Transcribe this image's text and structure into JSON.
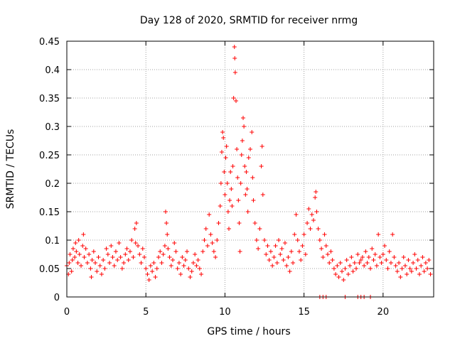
{
  "chart_data": {
    "type": "scatter",
    "title": "Day 128 of 2020, SRMTID for receiver nrmg",
    "xlabel": "GPS time / hours",
    "ylabel": "SRMTID / TECUs",
    "xlim": [
      0,
      23.2
    ],
    "ylim": [
      0,
      0.45
    ],
    "xticks": [
      0,
      5,
      10,
      15,
      20
    ],
    "xtick_labels": [
      "0",
      "5",
      "10",
      "15",
      "20"
    ],
    "yticks": [
      0,
      0.05,
      0.1,
      0.15,
      0.2,
      0.25,
      0.3,
      0.35,
      0.4,
      0.45
    ],
    "ytick_labels": [
      "0",
      "0.05",
      "0.1",
      "0.15",
      "0.2",
      "0.25",
      "0.3",
      "0.35",
      "0.4",
      "0.45"
    ],
    "grid": true,
    "marker": "plus",
    "marker_color": "#ff0000",
    "series": [
      {
        "name": "SRMTID",
        "points": [
          [
            0.0,
            0.055
          ],
          [
            0.1,
            0.04
          ],
          [
            0.15,
            0.06
          ],
          [
            0.2,
            0.075
          ],
          [
            0.3,
            0.045
          ],
          [
            0.35,
            0.065
          ],
          [
            0.4,
            0.085
          ],
          [
            0.5,
            0.07
          ],
          [
            0.55,
            0.095
          ],
          [
            0.6,
            0.08
          ],
          [
            0.7,
            0.06
          ],
          [
            0.75,
            0.1
          ],
          [
            0.8,
            0.075
          ],
          [
            0.9,
            0.055
          ],
          [
            1.0,
            0.09
          ],
          [
            1.05,
            0.11
          ],
          [
            1.1,
            0.07
          ],
          [
            1.2,
            0.085
          ],
          [
            1.3,
            0.06
          ],
          [
            1.4,
            0.075
          ],
          [
            1.5,
            0.05
          ],
          [
            1.55,
            0.035
          ],
          [
            1.6,
            0.065
          ],
          [
            1.7,
            0.08
          ],
          [
            1.8,
            0.06
          ],
          [
            1.9,
            0.045
          ],
          [
            2.0,
            0.07
          ],
          [
            2.1,
            0.055
          ],
          [
            2.2,
            0.04
          ],
          [
            2.3,
            0.065
          ],
          [
            2.4,
            0.05
          ],
          [
            2.5,
            0.085
          ],
          [
            2.6,
            0.075
          ],
          [
            2.7,
            0.06
          ],
          [
            2.8,
            0.09
          ],
          [
            2.9,
            0.07
          ],
          [
            3.0,
            0.055
          ],
          [
            3.1,
            0.08
          ],
          [
            3.2,
            0.065
          ],
          [
            3.3,
            0.095
          ],
          [
            3.4,
            0.07
          ],
          [
            3.5,
            0.05
          ],
          [
            3.6,
            0.06
          ],
          [
            3.7,
            0.075
          ],
          [
            3.8,
            0.085
          ],
          [
            3.9,
            0.065
          ],
          [
            4.0,
            0.08
          ],
          [
            4.1,
            0.1
          ],
          [
            4.2,
            0.07
          ],
          [
            4.3,
            0.12
          ],
          [
            4.35,
            0.095
          ],
          [
            4.4,
            0.13
          ],
          [
            4.5,
            0.09
          ],
          [
            4.6,
            0.075
          ],
          [
            4.7,
            0.06
          ],
          [
            4.8,
            0.085
          ],
          [
            4.9,
            0.07
          ],
          [
            5.0,
            0.05
          ],
          [
            5.1,
            0.04
          ],
          [
            5.2,
            0.03
          ],
          [
            5.3,
            0.055
          ],
          [
            5.4,
            0.045
          ],
          [
            5.5,
            0.06
          ],
          [
            5.6,
            0.035
          ],
          [
            5.7,
            0.05
          ],
          [
            5.8,
            0.07
          ],
          [
            5.9,
            0.08
          ],
          [
            6.0,
            0.06
          ],
          [
            6.1,
            0.075
          ],
          [
            6.2,
            0.09
          ],
          [
            6.25,
            0.15
          ],
          [
            6.3,
            0.13
          ],
          [
            6.35,
            0.11
          ],
          [
            6.4,
            0.085
          ],
          [
            6.5,
            0.07
          ],
          [
            6.6,
            0.055
          ],
          [
            6.7,
            0.065
          ],
          [
            6.8,
            0.095
          ],
          [
            6.9,
            0.08
          ],
          [
            7.0,
            0.05
          ],
          [
            7.1,
            0.06
          ],
          [
            7.2,
            0.04
          ],
          [
            7.3,
            0.07
          ],
          [
            7.4,
            0.055
          ],
          [
            7.5,
            0.065
          ],
          [
            7.6,
            0.08
          ],
          [
            7.7,
            0.05
          ],
          [
            7.8,
            0.035
          ],
          [
            7.9,
            0.045
          ],
          [
            8.0,
            0.06
          ],
          [
            8.1,
            0.075
          ],
          [
            8.2,
            0.055
          ],
          [
            8.3,
            0.065
          ],
          [
            8.4,
            0.05
          ],
          [
            8.5,
            0.04
          ],
          [
            8.6,
            0.08
          ],
          [
            8.7,
            0.1
          ],
          [
            8.8,
            0.12
          ],
          [
            8.9,
            0.09
          ],
          [
            9.0,
            0.145
          ],
          [
            9.1,
            0.11
          ],
          [
            9.2,
            0.095
          ],
          [
            9.3,
            0.08
          ],
          [
            9.4,
            0.07
          ],
          [
            9.5,
            0.1
          ],
          [
            9.6,
            0.13
          ],
          [
            9.7,
            0.16
          ],
          [
            9.75,
            0.2
          ],
          [
            9.8,
            0.255
          ],
          [
            9.85,
            0.29
          ],
          [
            9.9,
            0.28
          ],
          [
            9.95,
            0.22
          ],
          [
            10.0,
            0.18
          ],
          [
            10.05,
            0.245
          ],
          [
            10.1,
            0.265
          ],
          [
            10.15,
            0.2
          ],
          [
            10.2,
            0.15
          ],
          [
            10.25,
            0.12
          ],
          [
            10.3,
            0.17
          ],
          [
            10.35,
            0.22
          ],
          [
            10.4,
            0.19
          ],
          [
            10.45,
            0.16
          ],
          [
            10.5,
            0.23
          ],
          [
            10.55,
            0.35
          ],
          [
            10.6,
            0.44
          ],
          [
            10.62,
            0.42
          ],
          [
            10.65,
            0.395
          ],
          [
            10.7,
            0.345
          ],
          [
            10.75,
            0.26
          ],
          [
            10.8,
            0.21
          ],
          [
            10.85,
            0.17
          ],
          [
            10.9,
            0.13
          ],
          [
            10.95,
            0.08
          ],
          [
            11.0,
            0.2
          ],
          [
            11.05,
            0.25
          ],
          [
            11.1,
            0.275
          ],
          [
            11.15,
            0.315
          ],
          [
            11.2,
            0.3
          ],
          [
            11.25,
            0.23
          ],
          [
            11.3,
            0.18
          ],
          [
            11.35,
            0.22
          ],
          [
            11.4,
            0.19
          ],
          [
            11.45,
            0.15
          ],
          [
            11.5,
            0.245
          ],
          [
            11.6,
            0.26
          ],
          [
            11.7,
            0.29
          ],
          [
            11.75,
            0.21
          ],
          [
            11.8,
            0.17
          ],
          [
            11.9,
            0.13
          ],
          [
            12.0,
            0.1
          ],
          [
            12.1,
            0.085
          ],
          [
            12.2,
            0.12
          ],
          [
            12.3,
            0.23
          ],
          [
            12.35,
            0.265
          ],
          [
            12.4,
            0.18
          ],
          [
            12.5,
            0.1
          ],
          [
            12.6,
            0.075
          ],
          [
            12.7,
            0.09
          ],
          [
            12.8,
            0.065
          ],
          [
            12.9,
            0.08
          ],
          [
            13.0,
            0.055
          ],
          [
            13.1,
            0.07
          ],
          [
            13.2,
            0.09
          ],
          [
            13.3,
            0.06
          ],
          [
            13.4,
            0.1
          ],
          [
            13.5,
            0.075
          ],
          [
            13.6,
            0.085
          ],
          [
            13.7,
            0.065
          ],
          [
            13.8,
            0.095
          ],
          [
            13.9,
            0.055
          ],
          [
            14.0,
            0.07
          ],
          [
            14.1,
            0.045
          ],
          [
            14.2,
            0.08
          ],
          [
            14.3,
            0.06
          ],
          [
            14.4,
            0.11
          ],
          [
            14.5,
            0.145
          ],
          [
            14.6,
            0.1
          ],
          [
            14.7,
            0.08
          ],
          [
            14.8,
            0.065
          ],
          [
            14.9,
            0.09
          ],
          [
            15.0,
            0.11
          ],
          [
            15.1,
            0.075
          ],
          [
            15.2,
            0.13
          ],
          [
            15.3,
            0.155
          ],
          [
            15.4,
            0.12
          ],
          [
            15.5,
            0.145
          ],
          [
            15.6,
            0.135
          ],
          [
            15.7,
            0.175
          ],
          [
            15.75,
            0.185
          ],
          [
            15.8,
            0.15
          ],
          [
            15.9,
            0.12
          ],
          [
            16.0,
            0.1
          ],
          [
            16.1,
            0.085
          ],
          [
            16.2,
            0.07
          ],
          [
            16.3,
            0.11
          ],
          [
            16.4,
            0.09
          ],
          [
            16.5,
            0.075
          ],
          [
            16.6,
            0.06
          ],
          [
            16.7,
            0.08
          ],
          [
            16.8,
            0.065
          ],
          [
            16.9,
            0.05
          ],
          [
            17.0,
            0.04
          ],
          [
            17.1,
            0.055
          ],
          [
            17.2,
            0.035
          ],
          [
            17.3,
            0.06
          ],
          [
            17.4,
            0.045
          ],
          [
            17.5,
            0.03
          ],
          [
            17.6,
            0.05
          ],
          [
            17.7,
            0.065
          ],
          [
            17.8,
            0.04
          ],
          [
            17.9,
            0.055
          ],
          [
            18.0,
            0.07
          ],
          [
            18.1,
            0.045
          ],
          [
            18.2,
            0.06
          ],
          [
            18.3,
            0.05
          ],
          [
            18.4,
            0.075
          ],
          [
            18.5,
            0.06
          ],
          [
            18.6,
            0.065
          ],
          [
            18.7,
            0.07
          ],
          [
            18.8,
            0.055
          ],
          [
            18.9,
            0.08
          ],
          [
            19.0,
            0.06
          ],
          [
            19.1,
            0.07
          ],
          [
            19.2,
            0.05
          ],
          [
            19.3,
            0.085
          ],
          [
            19.4,
            0.065
          ],
          [
            19.5,
            0.075
          ],
          [
            19.6,
            0.055
          ],
          [
            19.7,
            0.11
          ],
          [
            19.8,
            0.07
          ],
          [
            19.9,
            0.06
          ],
          [
            20.0,
            0.075
          ],
          [
            20.1,
            0.09
          ],
          [
            20.2,
            0.065
          ],
          [
            20.3,
            0.05
          ],
          [
            20.4,
            0.08
          ],
          [
            20.5,
            0.06
          ],
          [
            20.6,
            0.11
          ],
          [
            20.7,
            0.07
          ],
          [
            20.8,
            0.055
          ],
          [
            20.9,
            0.045
          ],
          [
            21.0,
            0.06
          ],
          [
            21.1,
            0.035
          ],
          [
            21.2,
            0.05
          ],
          [
            21.3,
            0.07
          ],
          [
            21.4,
            0.055
          ],
          [
            21.5,
            0.04
          ],
          [
            21.6,
            0.065
          ],
          [
            21.7,
            0.05
          ],
          [
            21.8,
            0.045
          ],
          [
            21.9,
            0.06
          ],
          [
            22.0,
            0.075
          ],
          [
            22.1,
            0.05
          ],
          [
            22.2,
            0.065
          ],
          [
            22.3,
            0.04
          ],
          [
            22.4,
            0.055
          ],
          [
            22.5,
            0.07
          ],
          [
            22.6,
            0.045
          ],
          [
            22.7,
            0.06
          ],
          [
            22.8,
            0.05
          ],
          [
            22.9,
            0.065
          ],
          [
            23.0,
            0.04
          ],
          [
            16.0,
            0.0
          ],
          [
            16.2,
            0.0
          ],
          [
            16.4,
            0.0
          ],
          [
            17.6,
            0.0
          ],
          [
            18.4,
            0.0
          ],
          [
            18.6,
            0.0
          ],
          [
            18.8,
            0.0
          ],
          [
            19.2,
            0.0
          ]
        ]
      }
    ]
  }
}
